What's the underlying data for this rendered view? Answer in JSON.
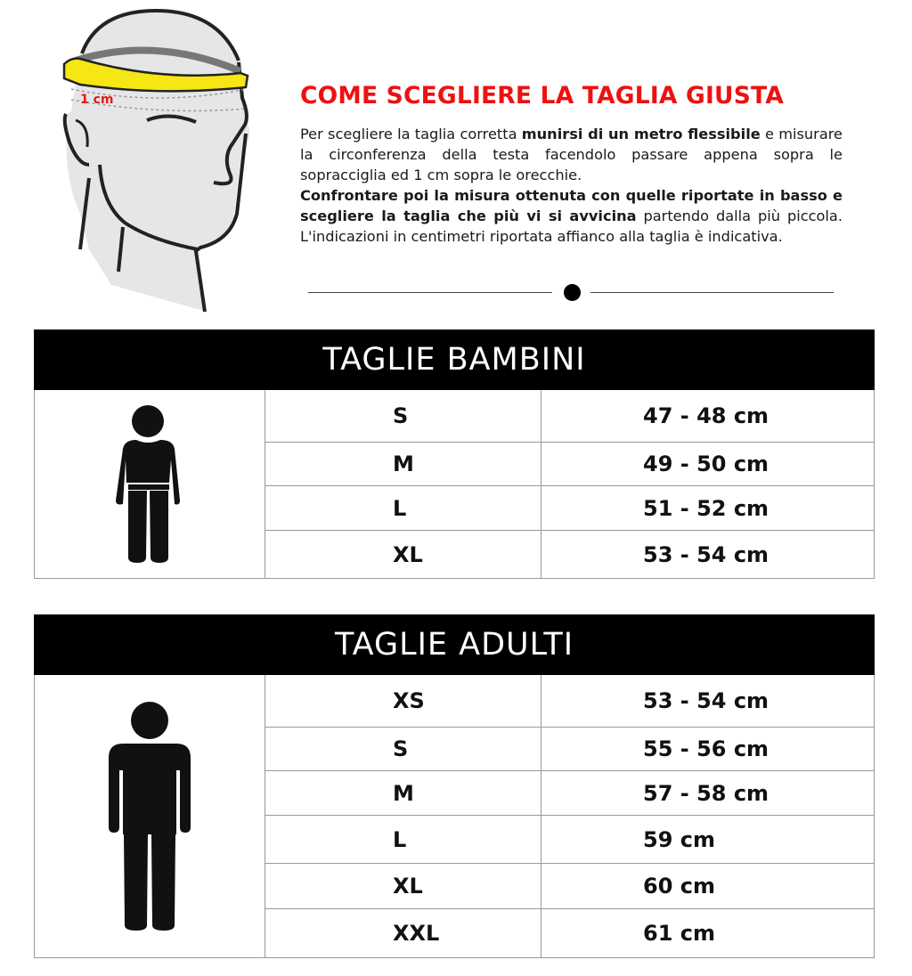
{
  "illustration": {
    "label": "1 cm",
    "tape_color": "#f5e614",
    "label_color": "#e31b1b"
  },
  "guide": {
    "title": "COME SCEGLIERE LA TAGLIA GIUSTA",
    "p1_normal_a": "Per scegliere la taglia corretta ",
    "p1_bold": "munirsi di un metro flessibile",
    "p1_normal_b": " e misurare la circonferenza della testa facendolo passare appena sopra le sopracciglia ed 1 cm sopra le orecchie.",
    "p2_bold": "Confrontare poi la misura ottenuta con quelle riportate in basso e scegliere la taglia che più vi si avvicina",
    "p2_normal": " partendo dalla più piccola. L'indicazioni in centimetri riportata affianco alla taglia è indicativa."
  },
  "colors": {
    "accent": "#ee1111",
    "header_bg": "#000000"
  },
  "kids": {
    "title": "TAGLIE BAMBINI",
    "icon": "child-figure-icon",
    "rows": [
      {
        "size": "S",
        "cm": "47 - 48 cm"
      },
      {
        "size": "M",
        "cm": "49 - 50 cm"
      },
      {
        "size": "L",
        "cm": "51 - 52 cm"
      },
      {
        "size": "XL",
        "cm": "53 - 54 cm"
      }
    ]
  },
  "adults": {
    "title": "TAGLIE ADULTI",
    "icon": "adult-figure-icon",
    "rows": [
      {
        "size": "XS",
        "cm": "53 - 54 cm"
      },
      {
        "size": "S",
        "cm": "55 - 56 cm"
      },
      {
        "size": "M",
        "cm": "57 - 58 cm"
      },
      {
        "size": "L",
        "cm": "59 cm"
      },
      {
        "size": "XL",
        "cm": "60 cm"
      },
      {
        "size": "XXL",
        "cm": "61 cm"
      }
    ]
  }
}
